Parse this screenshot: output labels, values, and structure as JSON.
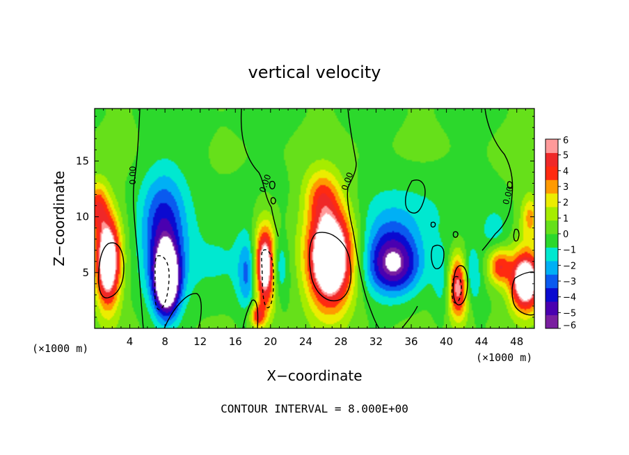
{
  "chart_data": {
    "type": "heatmap",
    "title": "vertical velocity",
    "xlabel": "X−coordinate",
    "ylabel": "Z−coordinate",
    "x_unit_left": "(×1000 m)",
    "x_unit_right": "(×1000 m)",
    "footer": "CONTOUR INTERVAL = 8.000E+00",
    "xlim": [
      0,
      50
    ],
    "ylim": [
      0,
      19.7
    ],
    "x_ticks": [
      4,
      8,
      12,
      16,
      20,
      24,
      28,
      32,
      36,
      40,
      44,
      48
    ],
    "y_ticks": [
      5,
      10,
      15
    ],
    "colorbar": {
      "min": -6,
      "max": 6,
      "ticks": [
        6,
        5,
        4,
        3,
        2,
        1,
        0,
        -1,
        -2,
        -3,
        -4,
        -5,
        -6
      ],
      "tick_labels": [
        "6",
        "5",
        "4",
        "3",
        "2",
        "1",
        "0",
        "−1",
        "−2",
        "−3",
        "−4",
        "−5",
        "−6"
      ],
      "colors": [
        "#7a1fa0",
        "#4a00b0",
        "#0a0ad0",
        "#0a5aef",
        "#00b0f5",
        "#00e8d0",
        "#2cd82c",
        "#66e01a",
        "#a6ec00",
        "#ecec00",
        "#ff9a00",
        "#ff2a10",
        "#ef2828",
        "#ff9a9a"
      ]
    },
    "contour_labels": [
      "0.00",
      "0.00",
      "0.00",
      "0.00"
    ],
    "features": [
      {
        "x": 1.5,
        "z": 6.0,
        "sx": 1.4,
        "sz": 4.0,
        "value": 9
      },
      {
        "x": 0.3,
        "z": 11.0,
        "sx": 1.2,
        "sz": 2.2,
        "value": 4
      },
      {
        "x": 7.8,
        "z": 8.5,
        "sx": 2.6,
        "sz": 5.2,
        "value": -4.5
      },
      {
        "x": 8.2,
        "z": 4.2,
        "sx": 1.4,
        "sz": 3.0,
        "value": -9
      },
      {
        "x": 19.4,
        "z": 5.5,
        "sx": 1.4,
        "sz": 3.6,
        "value": 9
      },
      {
        "x": 17.6,
        "z": 5.0,
        "sx": 1.2,
        "sz": 3.4,
        "value": -3.5
      },
      {
        "x": 20.8,
        "z": 5.6,
        "sx": 1.0,
        "sz": 2.8,
        "value": -3.5
      },
      {
        "x": 18.5,
        "z": 1.1,
        "sx": 0.9,
        "sz": 1.1,
        "value": 4
      },
      {
        "x": 26.8,
        "z": 6.3,
        "sx": 2.6,
        "sz": 4.4,
        "value": 10
      },
      {
        "x": 25.8,
        "z": 12.0,
        "sx": 2.0,
        "sz": 2.4,
        "value": 3
      },
      {
        "x": 34.0,
        "z": 5.6,
        "sx": 3.0,
        "sz": 2.6,
        "value": -5.5
      },
      {
        "x": 33.5,
        "z": 8.5,
        "sx": 3.5,
        "sz": 3.0,
        "value": -1.8
      },
      {
        "x": 41.2,
        "z": 3.8,
        "sx": 1.4,
        "sz": 2.9,
        "value": 9
      },
      {
        "x": 40.2,
        "z": 4.0,
        "sx": 1.3,
        "sz": 3.0,
        "value": -4
      },
      {
        "x": 42.6,
        "z": 4.5,
        "sx": 1.1,
        "sz": 2.6,
        "value": -3.5
      },
      {
        "x": 46.0,
        "z": 5.6,
        "sx": 1.3,
        "sz": 1.7,
        "value": 4.5
      },
      {
        "x": 49.0,
        "z": 4.2,
        "sx": 1.7,
        "sz": 2.6,
        "value": 9
      },
      {
        "x": 49.5,
        "z": 10.0,
        "sx": 1.0,
        "sz": 2.0,
        "value": 3
      },
      {
        "x": 45.6,
        "z": 8.6,
        "sx": 1.6,
        "sz": 2.2,
        "value": -1.5
      },
      {
        "x": 37.0,
        "z": 10.0,
        "sx": 5.0,
        "sz": 4.0,
        "value": -1.0
      },
      {
        "x": 14.0,
        "z": 6.5,
        "sx": 4.0,
        "sz": 4.0,
        "value": -1.2
      },
      {
        "x": 13.5,
        "z": 16.0,
        "sx": 4.0,
        "sz": 3.0,
        "value": -0.2
      }
    ]
  }
}
